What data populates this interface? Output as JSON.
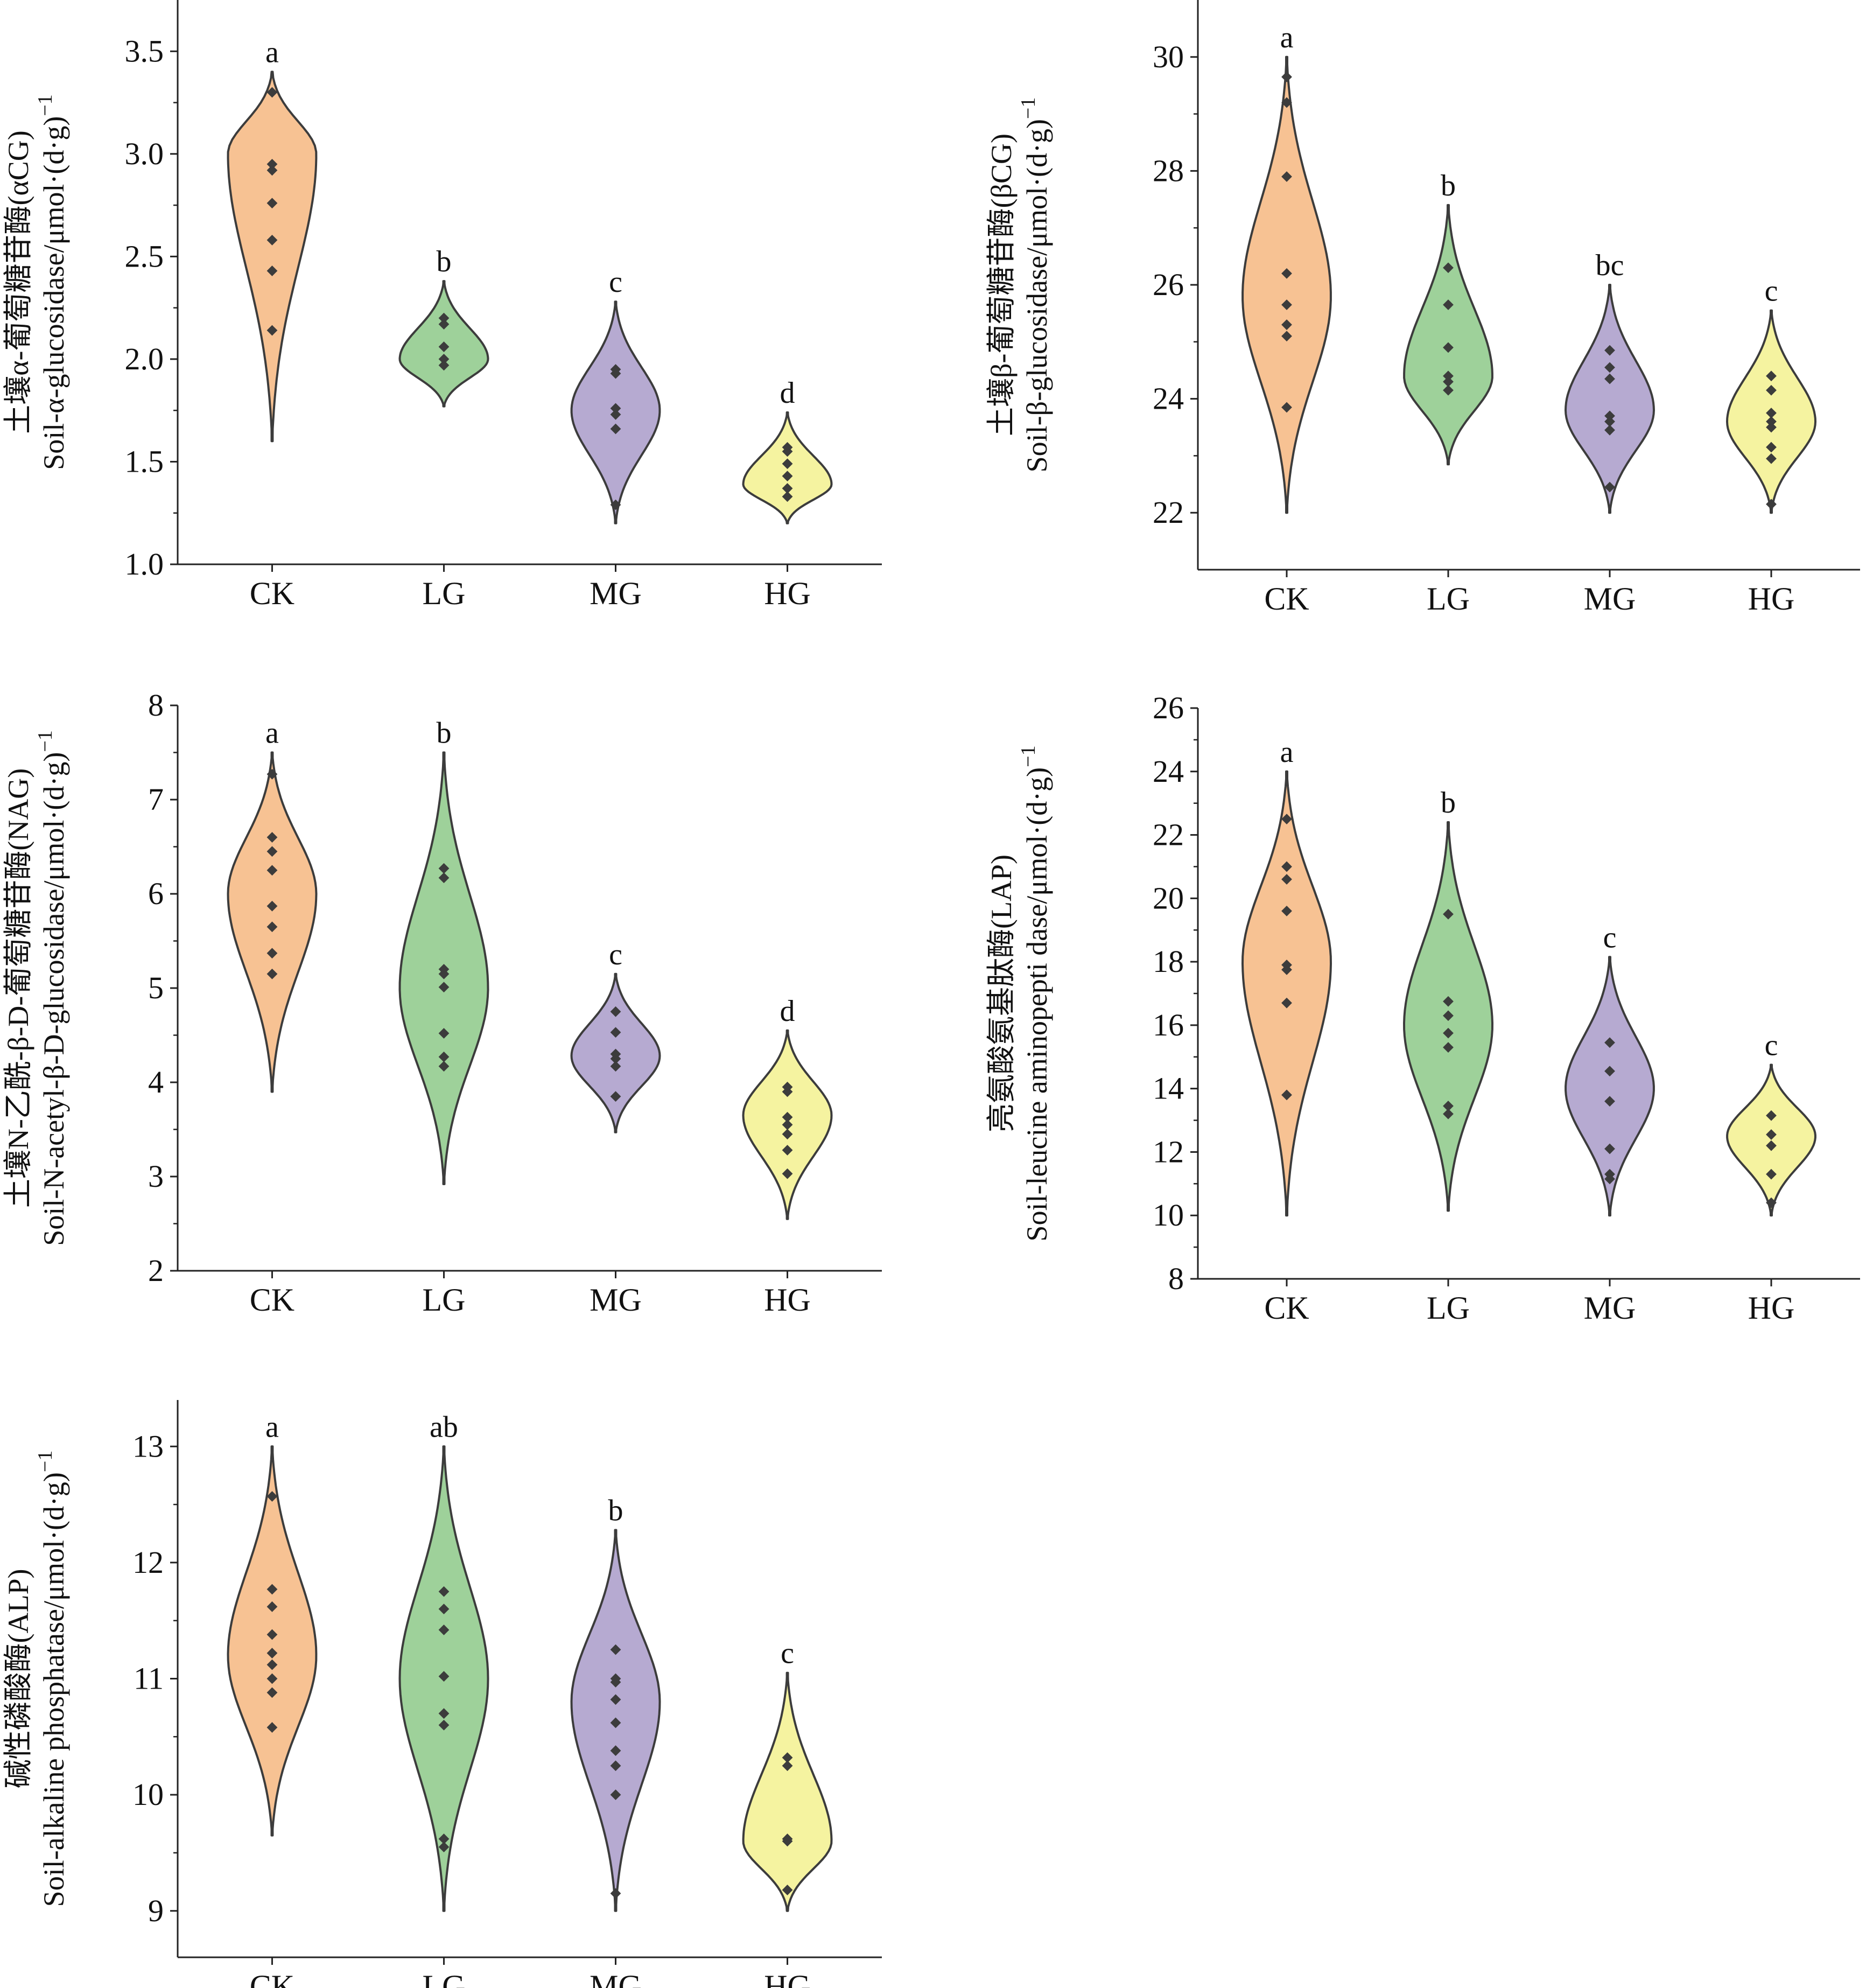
{
  "colors": {
    "CK": "#f7c293",
    "LG": "#9ed19a",
    "MG": "#b6aad1",
    "HG": "#f5f3a0",
    "outline": "#3c3c3c",
    "point": "#3c3c3c"
  },
  "chart_data": [
    {
      "type": "violin",
      "ylabel_cn": "土壤α-葡萄糖苷酶(αCG)",
      "ylabel_en": "Soil-α-glucosidase/μmol·(d·g)",
      "ylabel_sup": "−1",
      "categories": [
        "CK",
        "LG",
        "MG",
        "HG"
      ],
      "ylim": [
        1.0,
        3.75
      ],
      "yticks": [
        "1.0",
        "1.5",
        "2.0",
        "2.5",
        "3.0",
        "3.5"
      ],
      "series": [
        {
          "name": "CK",
          "sig": "a",
          "range": [
            1.6,
            3.4
          ],
          "bulge": 3.0,
          "points": [
            2.14,
            2.43,
            2.58,
            2.76,
            2.92,
            2.95,
            3.3
          ]
        },
        {
          "name": "LG",
          "sig": "b",
          "range": [
            1.77,
            2.38
          ],
          "bulge": 2.0,
          "points": [
            1.97,
            2.0,
            2.06,
            2.17,
            2.2
          ]
        },
        {
          "name": "MG",
          "sig": "c",
          "range": [
            1.2,
            2.28
          ],
          "bulge": 1.75,
          "points": [
            1.29,
            1.66,
            1.73,
            1.76,
            1.93,
            1.95
          ]
        },
        {
          "name": "HG",
          "sig": "d",
          "range": [
            1.2,
            1.74
          ],
          "bulge": 1.39,
          "points": [
            1.33,
            1.37,
            1.43,
            1.49,
            1.55,
            1.57
          ]
        }
      ]
    },
    {
      "type": "violin",
      "ylabel_cn": "土壤β-葡萄糖苷酶(βCG)",
      "ylabel_en": "Soil-β-glucosidase/μmol·(d·g)",
      "ylabel_sup": "−1",
      "categories": [
        "CK",
        "LG",
        "MG",
        "HG"
      ],
      "ylim": [
        21.0,
        31.0
      ],
      "yticks": [
        "22",
        "24",
        "26",
        "28",
        "30"
      ],
      "series": [
        {
          "name": "CK",
          "sig": "a",
          "range": [
            22.0,
            30.0
          ],
          "bulge": 25.8,
          "points": [
            23.85,
            25.1,
            25.3,
            25.65,
            26.2,
            27.9,
            29.2,
            29.65
          ]
        },
        {
          "name": "LG",
          "sig": "b",
          "range": [
            22.85,
            27.4
          ],
          "bulge": 24.4,
          "points": [
            24.15,
            24.3,
            24.4,
            24.9,
            25.65,
            26.3
          ]
        },
        {
          "name": "MG",
          "sig": "bc",
          "range": [
            22.0,
            26.0
          ],
          "bulge": 23.8,
          "points": [
            22.45,
            23.45,
            23.6,
            23.7,
            24.35,
            24.55,
            24.85
          ]
        },
        {
          "name": "HG",
          "sig": "c",
          "range": [
            22.0,
            25.55
          ],
          "bulge": 23.6,
          "points": [
            22.15,
            22.95,
            23.15,
            23.5,
            23.6,
            23.75,
            24.15,
            24.4
          ]
        }
      ]
    },
    {
      "type": "violin",
      "ylabel_cn": "土壤N-乙酰-β-D-葡萄糖苷酶(NAG)",
      "ylabel_en": "Soil-N-acetyl-β-D-glucosidase/μmol·(d·g)",
      "ylabel_sup": "−1",
      "categories": [
        "CK",
        "LG",
        "MG",
        "HG"
      ],
      "ylim": [
        2.0,
        8.0
      ],
      "yticks": [
        "2",
        "3",
        "4",
        "5",
        "6",
        "7",
        "8"
      ],
      "series": [
        {
          "name": "CK",
          "sig": "a",
          "range": [
            3.9,
            7.5
          ],
          "bulge": 6.0,
          "points": [
            5.15,
            5.37,
            5.65,
            5.87,
            6.25,
            6.45,
            6.6,
            7.27
          ]
        },
        {
          "name": "LG",
          "sig": "b",
          "range": [
            2.92,
            7.5
          ],
          "bulge": 5.0,
          "points": [
            4.17,
            4.27,
            4.52,
            5.01,
            5.15,
            5.2,
            6.17,
            6.27
          ]
        },
        {
          "name": "MG",
          "sig": "c",
          "range": [
            3.47,
            5.15
          ],
          "bulge": 4.28,
          "points": [
            3.85,
            4.17,
            4.25,
            4.3,
            4.53,
            4.75
          ]
        },
        {
          "name": "HG",
          "sig": "d",
          "range": [
            2.55,
            4.55
          ],
          "bulge": 3.65,
          "points": [
            3.03,
            3.28,
            3.45,
            3.55,
            3.63,
            3.9,
            3.95
          ]
        }
      ]
    },
    {
      "type": "violin",
      "ylabel_cn": "亮氨酸氨基肽酶(LAP)",
      "ylabel_en": "Soil-leucine aminopepti dase/μmol·(d·g)",
      "ylabel_sup": "−1",
      "categories": [
        "CK",
        "LG",
        "MG",
        "HG"
      ],
      "ylim": [
        8.0,
        26.0
      ],
      "yticks": [
        "8",
        "10",
        "12",
        "14",
        "16",
        "18",
        "20",
        "22",
        "24",
        "26"
      ],
      "series": [
        {
          "name": "CK",
          "sig": "a",
          "range": [
            10.0,
            24.0
          ],
          "bulge": 18.0,
          "points": [
            13.8,
            16.7,
            17.75,
            17.9,
            19.6,
            20.6,
            21.0,
            22.5
          ]
        },
        {
          "name": "LG",
          "sig": "b",
          "range": [
            10.15,
            22.4
          ],
          "bulge": 16.0,
          "points": [
            13.2,
            13.45,
            15.3,
            15.75,
            16.3,
            16.75,
            19.5
          ]
        },
        {
          "name": "MG",
          "sig": "c",
          "range": [
            10.0,
            18.15
          ],
          "bulge": 14.0,
          "points": [
            11.15,
            11.3,
            12.1,
            13.6,
            14.55,
            15.45
          ]
        },
        {
          "name": "HG",
          "sig": "c",
          "range": [
            10.0,
            14.75
          ],
          "bulge": 12.5,
          "points": [
            10.4,
            11.3,
            12.2,
            12.55,
            13.15
          ]
        }
      ]
    },
    {
      "type": "violin",
      "ylabel_cn": "碱性磷酸酶(ALP)",
      "ylabel_en": "Soil-alkaline phosphatase/μmol·(d·g)",
      "ylabel_sup": "−1",
      "categories": [
        "CK",
        "LG",
        "MG",
        "HG"
      ],
      "ylim": [
        8.6,
        13.4
      ],
      "yticks": [
        "9",
        "10",
        "11",
        "12",
        "13"
      ],
      "series": [
        {
          "name": "CK",
          "sig": "a",
          "range": [
            9.65,
            13.0
          ],
          "bulge": 11.2,
          "points": [
            10.58,
            10.88,
            11.0,
            11.12,
            11.22,
            11.38,
            11.62,
            11.77,
            12.57
          ]
        },
        {
          "name": "LG",
          "sig": "ab",
          "range": [
            9.0,
            13.0
          ],
          "bulge": 11.0,
          "points": [
            9.55,
            9.62,
            10.6,
            10.7,
            11.02,
            11.42,
            11.6,
            11.75
          ]
        },
        {
          "name": "MG",
          "sig": "b",
          "range": [
            9.0,
            12.28
          ],
          "bulge": 10.8,
          "points": [
            9.15,
            10.0,
            10.25,
            10.38,
            10.62,
            10.82,
            10.97,
            11.0,
            11.25
          ]
        },
        {
          "name": "HG",
          "sig": "c",
          "range": [
            9.0,
            11.05
          ],
          "bulge": 9.6,
          "points": [
            9.18,
            9.6,
            9.62,
            10.25,
            10.32
          ]
        }
      ]
    }
  ]
}
